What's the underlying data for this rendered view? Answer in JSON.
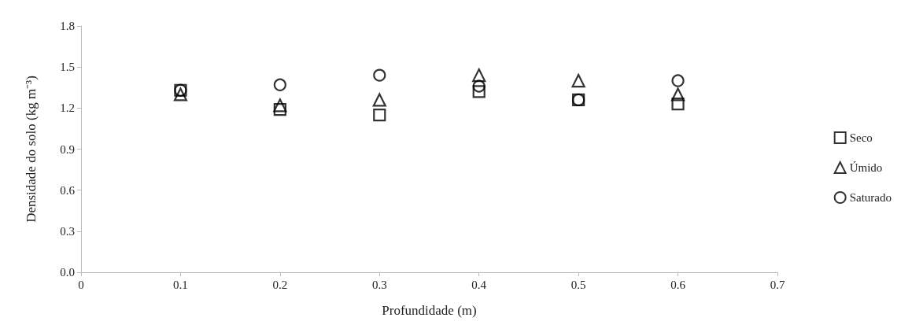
{
  "chart_data": {
    "type": "scatter",
    "xlabel": "Profundidade (m)",
    "ylabel": "Densidade do solo (kg m⁻³)",
    "x": [
      0.1,
      0.2,
      0.3,
      0.4,
      0.5,
      0.6
    ],
    "series": [
      {
        "name": "Seco",
        "color": "#000000",
        "marker": "square",
        "values": [
          1.33,
          1.19,
          1.15,
          1.32,
          1.26,
          1.23
        ]
      },
      {
        "name": "Úmido",
        "color": "#000000",
        "marker": "triangle",
        "values": [
          1.3,
          1.22,
          1.26,
          1.44,
          1.4,
          1.3
        ]
      },
      {
        "name": "Saturado",
        "color": "#000000",
        "marker": "circle",
        "values": [
          1.33,
          1.37,
          1.44,
          1.36,
          1.26,
          1.4
        ]
      }
    ],
    "xlim": [
      0,
      0.7
    ],
    "xticks": [
      0,
      0.1,
      0.2,
      0.3,
      0.4,
      0.5,
      0.6,
      0.7
    ],
    "ylim": [
      0,
      1.8
    ],
    "yticks": [
      {
        "value": 0,
        "label": "0.0"
      },
      0.3,
      0.6,
      0.9,
      1.2,
      1.5,
      1.8
    ],
    "grid": false,
    "legend": "right"
  }
}
